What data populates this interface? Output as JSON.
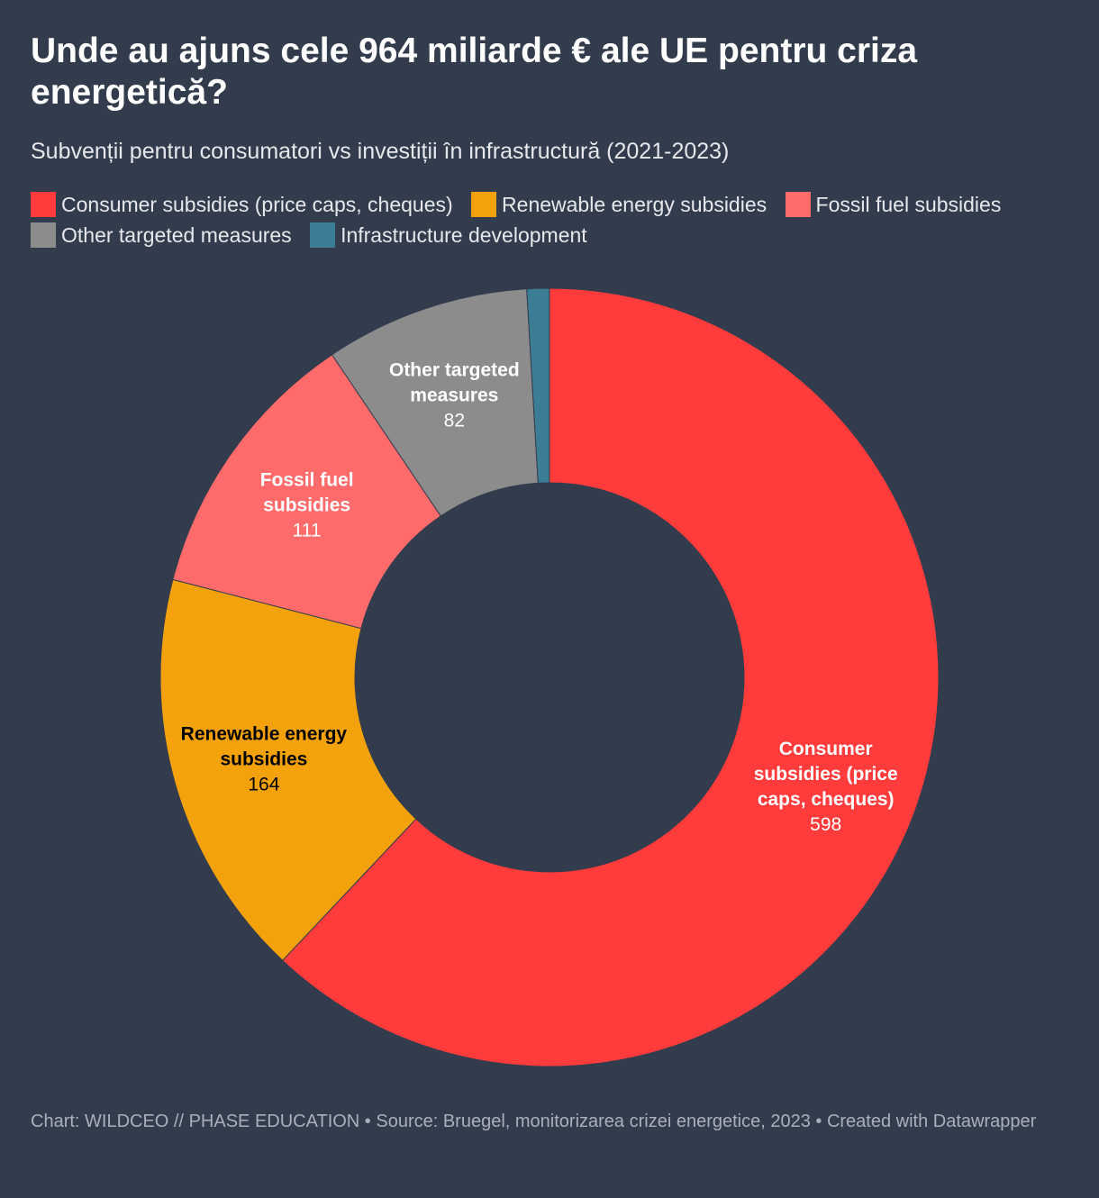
{
  "header": {
    "title": "Unde au ajuns cele 964 miliarde € ale UE pentru criza energetică?",
    "subtitle": "Subvenții pentru consumatori vs investiții în infrastructură (2021-2023)"
  },
  "footer": {
    "text": "Chart: WILDCEO // PHASE EDUCATION • Source: Bruegel, monitorizarea crizei energetice, 2023 • Created with Datawrapper"
  },
  "colors": {
    "background": "#333c4c",
    "consumer": "#ff3b3b",
    "renewable": "#f4a20c",
    "fossil": "#ff6b6b",
    "other": "#8c8c8c",
    "infrastructure": "#3a7d95"
  },
  "chart_data": {
    "type": "pie",
    "variant": "donut",
    "total": 964,
    "unit": "miliarde €",
    "legend_position": "top",
    "slices": [
      {
        "label": "Consumer subsidies (price caps, cheques)",
        "chart_label": "Consumer subsidies (price caps, cheques)",
        "value": 598,
        "color": "#ff3b3b",
        "label_color": "#ffffff",
        "show_label": true
      },
      {
        "label": "Renewable energy subsidies",
        "chart_label": "Renewable energy subsidies",
        "value": 164,
        "color": "#f4a20c",
        "label_color": "#000000",
        "show_label": true
      },
      {
        "label": "Fossil fuel subsidies",
        "chart_label": "Fossil fuel subsidies",
        "value": 111,
        "color": "#ff6b6b",
        "label_color": "#ffffff",
        "show_label": true
      },
      {
        "label": "Other targeted measures",
        "chart_label": "Other targeted measures",
        "value": 82,
        "color": "#8c8c8c",
        "label_color": "#ffffff",
        "show_label": true
      },
      {
        "label": "Infrastructure development",
        "chart_label": "Infrastructure development",
        "value": 9,
        "color": "#3a7d95",
        "label_color": "#ffffff",
        "show_label": false
      }
    ]
  }
}
